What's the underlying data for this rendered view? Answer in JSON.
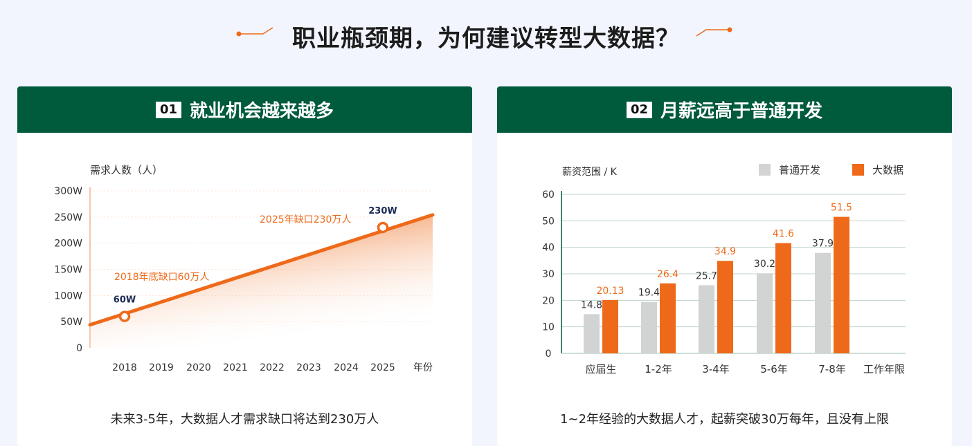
{
  "page": {
    "title": "职业瓶颈期，为何建议转型大数据？"
  },
  "colors": {
    "green": "#005a3c",
    "orange": "#ee6a1a",
    "gray": "#d2d4d4",
    "bg": "#f2f5fe"
  },
  "cards": [
    {
      "num": "01",
      "title": "就业机会越来越多",
      "caption": "未来3-5年，大数据人才需求缺口将达到230万人"
    },
    {
      "num": "02",
      "title": "月薪远高于普通开发",
      "caption": "1~2年经验的大数据人才，起薪突破30万每年，且没有上限"
    }
  ],
  "chart_data": [
    {
      "type": "area",
      "ylabel": "需求人数（人）",
      "xlabel": "年份",
      "x": [
        "2018",
        "2019",
        "2020",
        "2021",
        "2022",
        "2023",
        "2024",
        "2025"
      ],
      "ylim": [
        0,
        300
      ],
      "yticks": [
        "0",
        "50W",
        "100W",
        "150W",
        "200W",
        "250W",
        "300W"
      ],
      "line_start": 44,
      "line_end": 254,
      "points": [
        {
          "x": "2018",
          "y": 60,
          "label": "60W",
          "annotation": "2018年底缺口60万人"
        },
        {
          "x": "2025",
          "y": 230,
          "label": "230W",
          "annotation": "2025年缺口230万人"
        }
      ],
      "grid": true
    },
    {
      "type": "bar",
      "ylabel": "薪资范围 / K",
      "xlabel": "工作年限",
      "categories": [
        "应届生",
        "1-2年",
        "3-4年",
        "5-6年",
        "7-8年"
      ],
      "ylim": [
        0,
        60
      ],
      "yticks": [
        "0",
        "10",
        "20",
        "30",
        "40",
        "50",
        "60"
      ],
      "series": [
        {
          "name": "普通开发",
          "color": "#d2d4d4",
          "values": [
            14.8,
            19.4,
            25.7,
            30.2,
            37.9
          ],
          "labels": [
            "14.8",
            "19.4",
            "25.7",
            "30.2",
            "37.9"
          ]
        },
        {
          "name": "大数据",
          "color": "#ee6a1a",
          "values": [
            20.13,
            26.4,
            34.9,
            41.6,
            51.5
          ],
          "labels": [
            "20.13",
            "26.4",
            "34.9",
            "41.6",
            "51.5"
          ]
        }
      ],
      "legend": "top-right",
      "grid": true
    }
  ]
}
